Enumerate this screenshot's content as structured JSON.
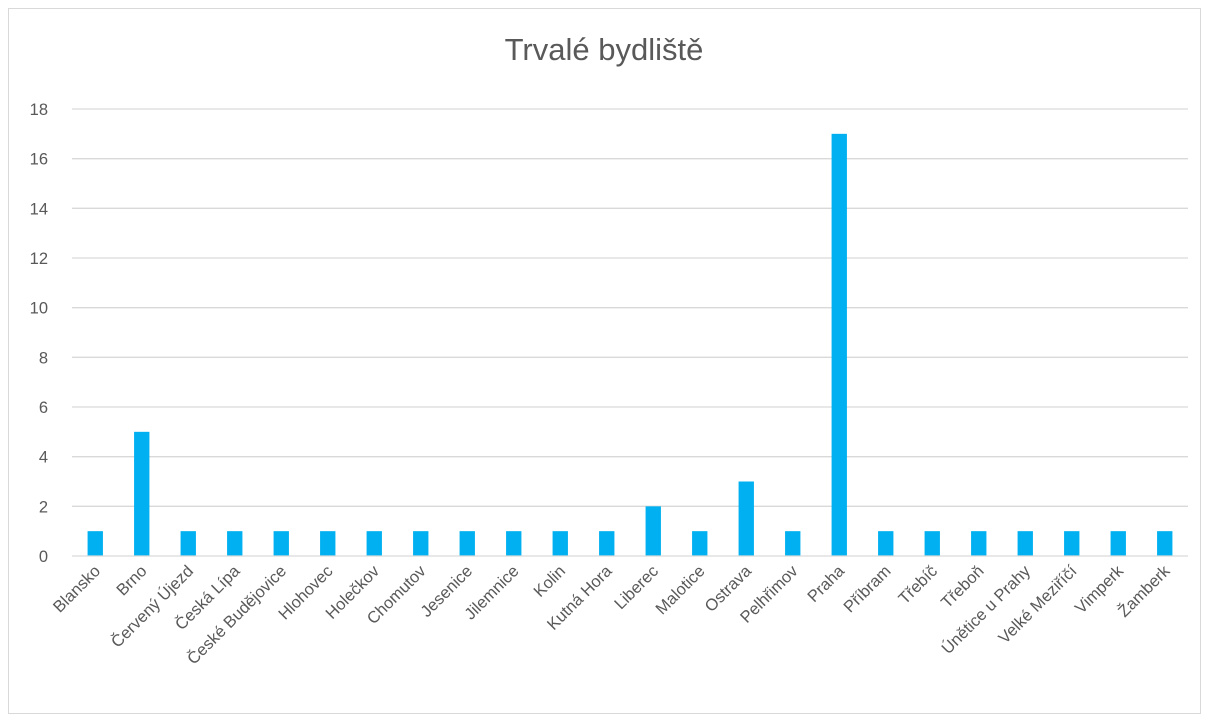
{
  "chart_data": {
    "type": "bar",
    "title": "Trvalé bydliště",
    "xlabel": "",
    "ylabel": "",
    "ylim": [
      0,
      18
    ],
    "yticks": [
      0,
      2,
      4,
      6,
      8,
      10,
      12,
      14,
      16,
      18
    ],
    "grid": true,
    "legend": "none",
    "bar_color": "#00B0F0",
    "categories": [
      "Blansko",
      "Brno",
      "Červený Újezd",
      "Česká Lípa",
      "České Budějovice",
      "Hlohovec",
      "Holečkov",
      "Chomutov",
      "Jesenice",
      "Jilemnice",
      "Kolin",
      "Kutná Hora",
      "Liberec",
      "Malotice",
      "Ostrava",
      "Pelhřimov",
      "Praha",
      "Příbram",
      "Třebíč",
      "Třeboň",
      "Únětice u Prahy",
      "Velké Meziříčí",
      "Vimperk",
      "Žamberk"
    ],
    "values": [
      1,
      5,
      1,
      1,
      1,
      1,
      1,
      1,
      1,
      1,
      1,
      1,
      2,
      1,
      3,
      1,
      17,
      1,
      1,
      1,
      1,
      1,
      1,
      1
    ]
  }
}
